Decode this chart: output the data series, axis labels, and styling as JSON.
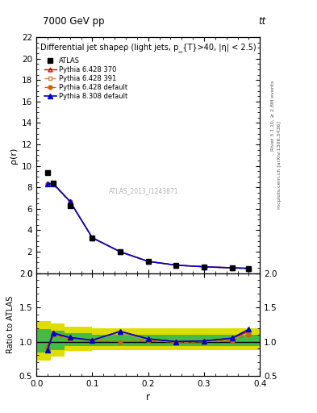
{
  "title_top": "7000 GeV pp",
  "title_right": "tt",
  "right_label1": "Rivet 3.1.10, ≥ 2.8M events",
  "right_label2": "mcplots.cern.ch [arXiv:1306.3436]",
  "plot_title": "Differential jet shapeρ (light jets, p_{T}>40, |η| < 2.5)",
  "ylabel_main": "ρ(r)",
  "ylabel_ratio": "Ratio to ATLAS",
  "xlabel": "r",
  "watermark": "ATLAS_2013_I1243871",
  "main_xlim": [
    0,
    0.4
  ],
  "main_ylim": [
    0,
    22
  ],
  "ratio_ylim": [
    0.5,
    2.0
  ],
  "r_data": [
    0.02,
    0.03,
    0.06,
    0.1,
    0.15,
    0.2,
    0.25,
    0.3,
    0.35,
    0.38
  ],
  "atlas_y": [
    9.4,
    8.4,
    6.3,
    3.3,
    2.0,
    1.1,
    0.75,
    0.6,
    0.5,
    0.45
  ],
  "pythia6_370_y": [
    8.35,
    8.35,
    6.7,
    3.3,
    2.0,
    1.1,
    0.75,
    0.6,
    0.5,
    0.45
  ],
  "pythia6_391_y": [
    8.3,
    8.3,
    6.65,
    3.3,
    2.0,
    1.1,
    0.75,
    0.6,
    0.5,
    0.45
  ],
  "pythia6_def_y": [
    8.3,
    8.3,
    6.65,
    3.3,
    2.0,
    1.1,
    0.75,
    0.6,
    0.5,
    0.45
  ],
  "pythia8_def_y": [
    8.35,
    8.35,
    6.7,
    3.3,
    2.0,
    1.1,
    0.75,
    0.6,
    0.5,
    0.45
  ],
  "ratio_p6_370": [
    0.92,
    1.13,
    1.06,
    1.02,
    1.15,
    1.04,
    1.0,
    1.01,
    1.05,
    1.15
  ],
  "ratio_p6_391": [
    0.9,
    1.1,
    1.04,
    1.02,
    1.13,
    1.02,
    0.99,
    1.0,
    1.02,
    1.12
  ],
  "ratio_p6_def": [
    0.9,
    1.1,
    1.04,
    1.02,
    1.0,
    1.02,
    0.99,
    1.0,
    1.02,
    1.1
  ],
  "ratio_p8_def": [
    0.88,
    1.12,
    1.06,
    1.02,
    1.15,
    1.04,
    1.0,
    1.01,
    1.05,
    1.18
  ],
  "band_r": [
    0.0,
    0.025,
    0.05,
    0.1,
    0.4
  ],
  "band_yellow_lo": [
    0.72,
    0.78,
    0.86,
    0.88,
    0.88
  ],
  "band_yellow_hi": [
    1.3,
    1.27,
    1.22,
    1.2,
    1.2
  ],
  "band_green_lo": [
    0.84,
    0.88,
    0.93,
    0.94,
    0.94
  ],
  "band_green_hi": [
    1.18,
    1.16,
    1.12,
    1.1,
    1.1
  ],
  "color_p6_370": "#cc0000",
  "color_p6_391": "#cc8844",
  "color_p6_def": "#cc6600",
  "color_p8_def": "#0000cc",
  "color_atlas": "#000000",
  "color_green": "#44bb44",
  "color_yellow": "#dddd00",
  "bg_color": "#ffffff",
  "legend_entries": [
    "ATLAS",
    "Pythia 6.428 370",
    "Pythia 6.428 391",
    "Pythia 6.428 default",
    "Pythia 8.308 default"
  ]
}
